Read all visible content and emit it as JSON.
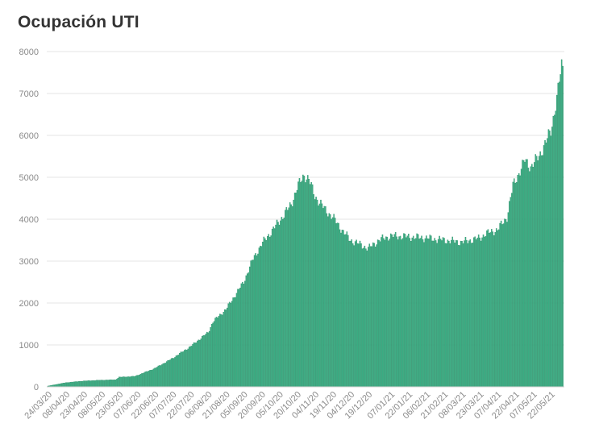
{
  "chart_data": {
    "type": "bar",
    "title": "Ocupación UTI",
    "xlabel": "",
    "ylabel": "",
    "ylim": [
      0,
      8000
    ],
    "yticks": [
      0,
      1000,
      2000,
      3000,
      4000,
      5000,
      6000,
      7000,
      8000
    ],
    "grid": true,
    "legend": "none",
    "bar_color": "#3fb48a",
    "bar_edge_color": "#2a8c66",
    "x_tick_labels": [
      "24/03/20",
      "08/04/20",
      "23/04/20",
      "08/05/20",
      "23/05/20",
      "07/06/20",
      "22/06/20",
      "07/07/20",
      "22/07/20",
      "06/08/20",
      "21/08/20",
      "05/09/20",
      "20/09/20",
      "05/10/20",
      "20/10/20",
      "04/11/20",
      "19/11/20",
      "04/12/20",
      "19/12/20",
      "07/01/21",
      "22/01/21",
      "06/02/21",
      "21/02/21",
      "08/03/21",
      "23/03/21",
      "07/04/21",
      "22/04/21",
      "07/05/21",
      "22/05/21"
    ],
    "series_anchors": [
      [
        "24/03/20",
        20
      ],
      [
        "08/04/20",
        100
      ],
      [
        "23/04/20",
        140
      ],
      [
        "08/05/20",
        160
      ],
      [
        "20/05/20",
        170
      ],
      [
        "23/05/20",
        230
      ],
      [
        "05/06/20",
        250
      ],
      [
        "07/06/20",
        270
      ],
      [
        "22/06/20",
        440
      ],
      [
        "07/07/20",
        680
      ],
      [
        "22/07/20",
        960
      ],
      [
        "06/08/20",
        1300
      ],
      [
        "10/08/20",
        1550
      ],
      [
        "21/08/20",
        1850
      ],
      [
        "05/09/20",
        2500
      ],
      [
        "12/09/20",
        3000
      ],
      [
        "20/09/20",
        3400
      ],
      [
        "05/10/20",
        3950
      ],
      [
        "15/10/20",
        4350
      ],
      [
        "20/10/20",
        4750
      ],
      [
        "26/10/20",
        5050
      ],
      [
        "30/10/20",
        4950
      ],
      [
        "04/11/20",
        4550
      ],
      [
        "12/11/20",
        4250
      ],
      [
        "19/11/20",
        4050
      ],
      [
        "28/11/20",
        3700
      ],
      [
        "04/12/20",
        3500
      ],
      [
        "12/12/20",
        3400
      ],
      [
        "19/12/20",
        3300
      ],
      [
        "28/12/20",
        3500
      ],
      [
        "07/01/21",
        3600
      ],
      [
        "22/01/21",
        3580
      ],
      [
        "06/02/21",
        3550
      ],
      [
        "21/02/21",
        3500
      ],
      [
        "08/03/21",
        3450
      ],
      [
        "23/03/21",
        3550
      ],
      [
        "28/03/21",
        3650
      ],
      [
        "07/04/21",
        3750
      ],
      [
        "15/04/21",
        4050
      ],
      [
        "20/04/21",
        4800
      ],
      [
        "30/04/21",
        5400
      ],
      [
        "05/05/21",
        5250
      ],
      [
        "12/05/21",
        5500
      ],
      [
        "22/05/21",
        6100
      ],
      [
        "27/05/21",
        6900
      ],
      [
        "31/05/21",
        7650
      ],
      [
        "01/06/21",
        7600
      ]
    ]
  },
  "header": {
    "title": "Ocupación UTI"
  }
}
